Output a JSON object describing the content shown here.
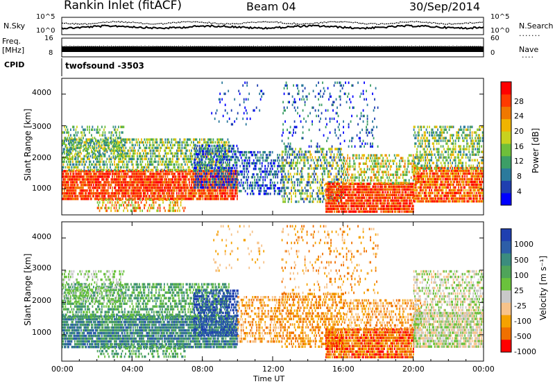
{
  "header": {
    "station": "Rankin Inlet (fitACF)",
    "beam": "Beam 04",
    "date": "30/Sep/2014"
  },
  "params": {
    "nsky_label": "N.Sky",
    "nsearch_label": "N.Search",
    "freq_label_1": "Freq.",
    "freq_label_2": "[MHz]",
    "nave_label": "Nave",
    "cpid_label": "CPID",
    "cpid_value": "twofsound -3503",
    "noise_ticks_left": [
      "10^5",
      "10^0"
    ],
    "noise_ticks_right": [
      "10^5",
      "10^0"
    ],
    "freq_ticks": [
      "16",
      "8"
    ],
    "nave_ticks": [
      "60",
      "0"
    ]
  },
  "chart_data": [
    {
      "type": "heatmap",
      "panel": "power",
      "ylabel": "Slant Range [km]",
      "ylim": [
        180,
        4500
      ],
      "yticks": [
        "4000",
        "3000",
        "2000",
        "1000"
      ],
      "xlim_hours": [
        0,
        24
      ],
      "colorbar": {
        "label": "Power [dB]",
        "range": [
          0,
          32
        ],
        "ticks": [
          "28",
          "24",
          "20",
          "16",
          "12",
          "8",
          "4"
        ],
        "colors": [
          "#0000ff",
          "#1f3fb0",
          "#2b7a9c",
          "#3c9e66",
          "#6fbf3a",
          "#c8d21e",
          "#f0b400",
          "#f07800",
          "#ff3a00",
          "#ff0000"
        ]
      },
      "features": [
        {
          "time": "00:00-10:00",
          "range_km": "700-1600",
          "level": "strong (24-32 dB)"
        },
        {
          "time": "15:00-24:00",
          "range_km": "600-1500",
          "level": "strong (24-32 dB)"
        },
        {
          "time": "00:00-24:00",
          "range_km": "1600-2600",
          "level": "moderate (8-20 dB)"
        }
      ]
    },
    {
      "type": "heatmap",
      "panel": "velocity",
      "ylabel": "Slant Range [km]",
      "xlabel": "Time UT",
      "ylim": [
        180,
        4500
      ],
      "yticks": [
        "4000",
        "3000",
        "2000",
        "1000"
      ],
      "xticks": [
        "00:00",
        "04:00",
        "08:00",
        "12:00",
        "16:00",
        "20:00",
        "00:00"
      ],
      "colorbar": {
        "label": "Velocity [m s⁻¹]",
        "ticks": [
          "1000",
          "500",
          "100",
          "25",
          "-25",
          "-100",
          "-500",
          "-1000"
        ],
        "colors": [
          "#1f3fb0",
          "#2d5ea8",
          "#3b8c7e",
          "#4fa45a",
          "#6ac23c",
          "#c9c9c9",
          "#f7c38a",
          "#f5a200",
          "#f07000",
          "#ff0000"
        ]
      },
      "features": [
        {
          "time": "00:00-08:00",
          "range_km": "500-3200",
          "velocity": "+100 to +500 m/s (toward)"
        },
        {
          "time": "08:00-10:00",
          "range_km": "1000-2400",
          "velocity": "+500 to +1000 m/s"
        },
        {
          "time": "10:00-20:00",
          "range_km": "400-2200",
          "velocity": "-100 to -500 m/s (away)"
        },
        {
          "time": "20:00-24:00",
          "range_km": "700-3000",
          "velocity": "-25 to +25 m/s (ground scatter)"
        }
      ]
    }
  ]
}
